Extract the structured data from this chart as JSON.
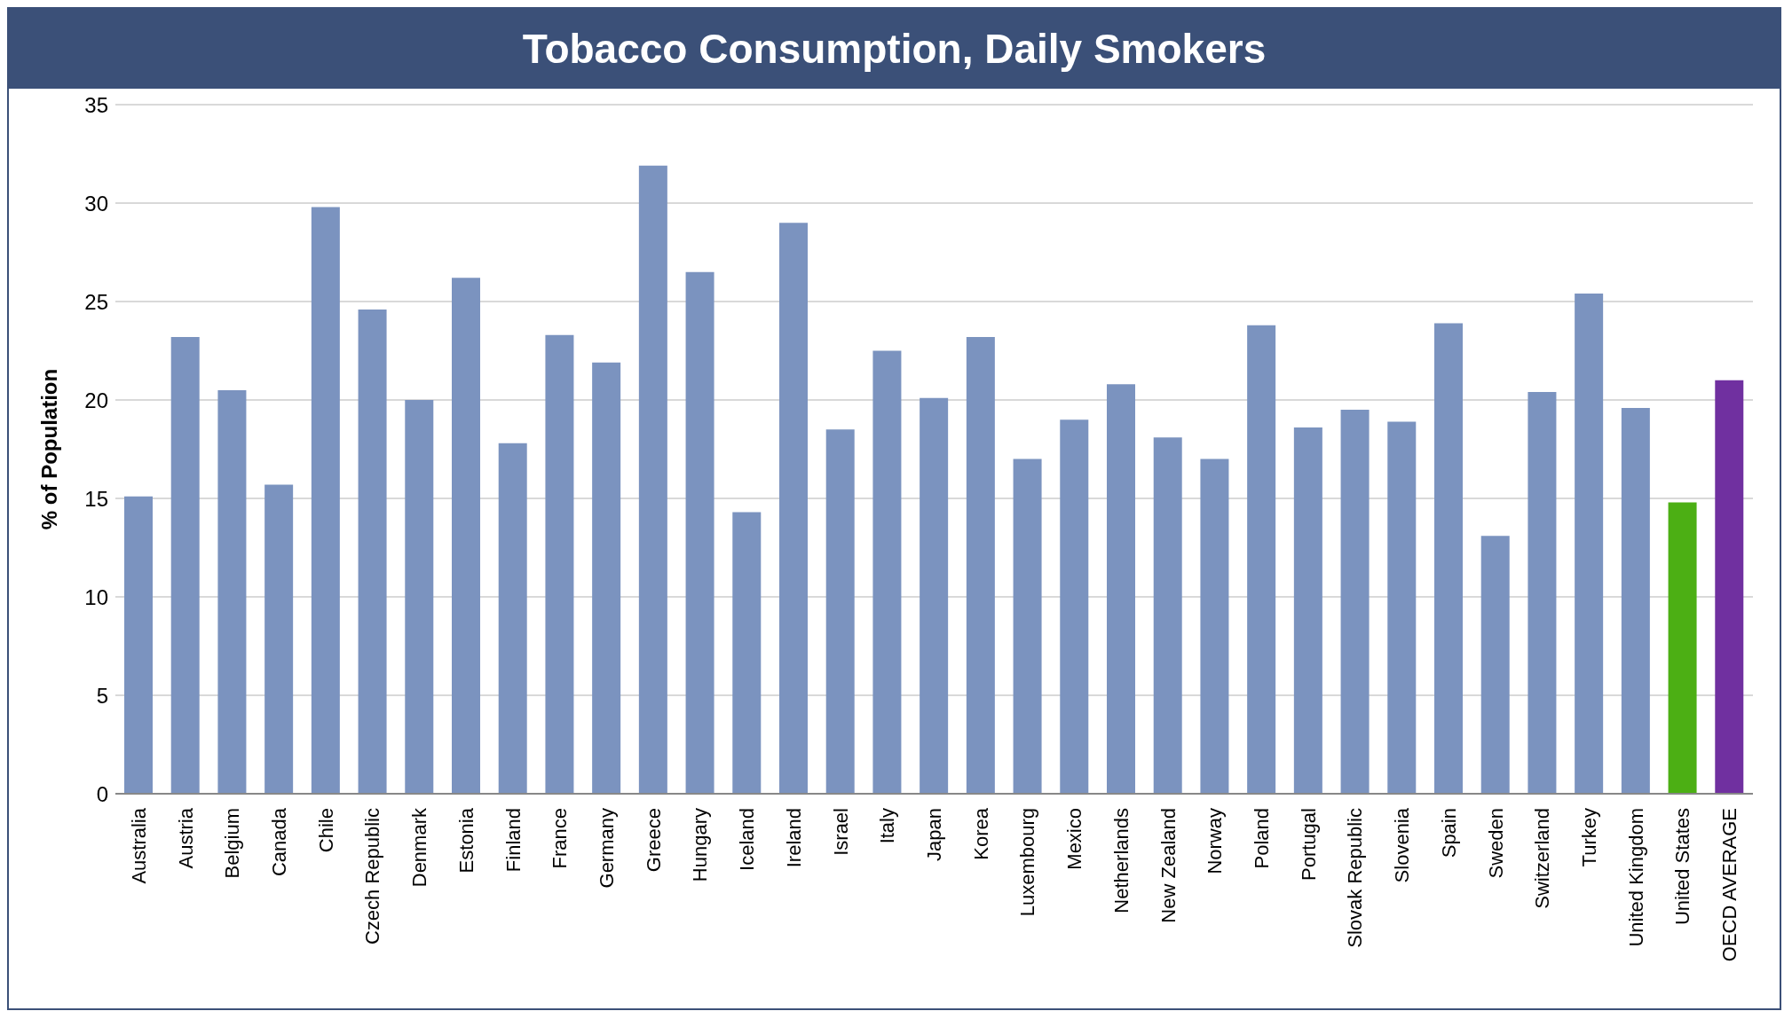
{
  "chart_data": {
    "type": "bar",
    "title": "Tobacco Consumption, Daily Smokers",
    "ylabel": "% of Population",
    "categories": [
      "Australia",
      "Austria",
      "Belgium",
      "Canada",
      "Chile",
      "Czech Republic",
      "Denmark",
      "Estonia",
      "Finland",
      "France",
      "Germany",
      "Greece",
      "Hungary",
      "Iceland",
      "Ireland",
      "Israel",
      "Italy",
      "Japan",
      "Korea",
      "Luxembourg",
      "Mexico",
      "Netherlands",
      "New Zealand",
      "Norway",
      "Poland",
      "Portugal",
      "Slovak Republic",
      "Slovenia",
      "Spain",
      "Sweden",
      "Switzerland",
      "Turkey",
      "United Kingdom",
      "United States",
      "OECD AVERAGE"
    ],
    "values": [
      15.1,
      23.2,
      20.5,
      15.7,
      29.8,
      24.6,
      20.0,
      26.2,
      17.8,
      23.3,
      21.9,
      31.9,
      26.5,
      14.3,
      29.0,
      18.5,
      22.5,
      20.1,
      23.2,
      17.0,
      19.0,
      20.8,
      18.1,
      17.0,
      23.8,
      18.6,
      19.5,
      18.9,
      23.9,
      13.1,
      20.4,
      25.4,
      19.6,
      14.8,
      21.0
    ],
    "colors": [
      "#7b93bf",
      "#7b93bf",
      "#7b93bf",
      "#7b93bf",
      "#7b93bf",
      "#7b93bf",
      "#7b93bf",
      "#7b93bf",
      "#7b93bf",
      "#7b93bf",
      "#7b93bf",
      "#7b93bf",
      "#7b93bf",
      "#7b93bf",
      "#7b93bf",
      "#7b93bf",
      "#7b93bf",
      "#7b93bf",
      "#7b93bf",
      "#7b93bf",
      "#7b93bf",
      "#7b93bf",
      "#7b93bf",
      "#7b93bf",
      "#7b93bf",
      "#7b93bf",
      "#7b93bf",
      "#7b93bf",
      "#7b93bf",
      "#7b93bf",
      "#7b93bf",
      "#7b93bf",
      "#7b93bf",
      "#4caf14",
      "#7030a0"
    ],
    "ylim": [
      0,
      35
    ],
    "yticks": [
      0,
      5,
      10,
      15,
      20,
      25,
      30,
      35
    ],
    "grid": "y",
    "legend": false
  }
}
